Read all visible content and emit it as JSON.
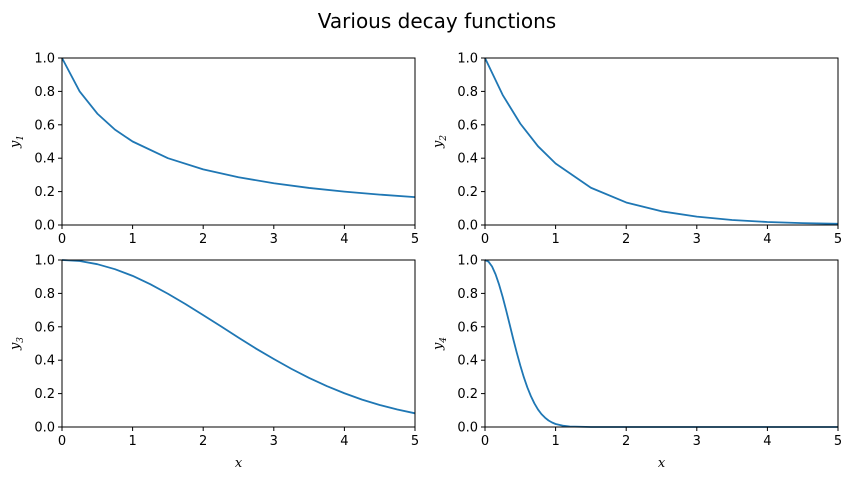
{
  "figure": {
    "title": "Various decay functions"
  },
  "colors": {
    "line": "#1f77b4"
  },
  "chart_data": [
    {
      "type": "line",
      "ylabel_base": "y",
      "ylabel_sub": "1",
      "xlabel": "",
      "xlim": [
        0,
        5
      ],
      "ylim": [
        0,
        1
      ],
      "xticks": [
        "0",
        "1",
        "2",
        "3",
        "4",
        "5"
      ],
      "yticks": [
        "0.0",
        "0.2",
        "0.4",
        "0.6",
        "0.8",
        "1.0"
      ],
      "grid": false,
      "series": [
        {
          "x": [
            0,
            0.25,
            0.5,
            0.75,
            1,
            1.5,
            2,
            2.5,
            3,
            3.5,
            4,
            4.5,
            5
          ],
          "y": [
            1,
            0.8,
            0.667,
            0.571,
            0.5,
            0.4,
            0.333,
            0.286,
            0.25,
            0.222,
            0.2,
            0.182,
            0.167
          ]
        }
      ]
    },
    {
      "type": "line",
      "ylabel_base": "y",
      "ylabel_sub": "2",
      "xlabel": "",
      "xlim": [
        0,
        5
      ],
      "ylim": [
        0,
        1
      ],
      "xticks": [
        "0",
        "1",
        "2",
        "3",
        "4",
        "5"
      ],
      "yticks": [
        "0.0",
        "0.2",
        "0.4",
        "0.6",
        "0.8",
        "1.0"
      ],
      "grid": false,
      "series": [
        {
          "x": [
            0,
            0.25,
            0.5,
            0.75,
            1,
            1.5,
            2,
            2.5,
            3,
            3.5,
            4,
            4.5,
            5
          ],
          "y": [
            1,
            0.779,
            0.607,
            0.472,
            0.368,
            0.223,
            0.135,
            0.082,
            0.05,
            0.03,
            0.018,
            0.011,
            0.007
          ]
        }
      ]
    },
    {
      "type": "line",
      "ylabel_base": "y",
      "ylabel_sub": "3",
      "xlabel": "x",
      "xlim": [
        0,
        5
      ],
      "ylim": [
        0,
        1
      ],
      "xticks": [
        "0",
        "1",
        "2",
        "3",
        "4",
        "5"
      ],
      "yticks": [
        "0.0",
        "0.2",
        "0.4",
        "0.6",
        "0.8",
        "1.0"
      ],
      "grid": false,
      "series": [
        {
          "x": [
            0,
            0.25,
            0.5,
            0.75,
            1,
            1.25,
            1.5,
            1.75,
            2,
            2.25,
            2.5,
            2.75,
            3,
            3.25,
            3.5,
            3.75,
            4,
            4.25,
            4.5,
            4.75,
            5
          ],
          "y": [
            1,
            0.994,
            0.975,
            0.945,
            0.905,
            0.855,
            0.798,
            0.736,
            0.67,
            0.603,
            0.535,
            0.469,
            0.407,
            0.348,
            0.294,
            0.245,
            0.202,
            0.164,
            0.132,
            0.105,
            0.082
          ]
        }
      ]
    },
    {
      "type": "line",
      "ylabel_base": "y",
      "ylabel_sub": "4",
      "xlabel": "x",
      "xlim": [
        0,
        5
      ],
      "ylim": [
        0,
        1
      ],
      "xticks": [
        "0",
        "1",
        "2",
        "3",
        "4",
        "5"
      ],
      "yticks": [
        "0.0",
        "0.2",
        "0.4",
        "0.6",
        "0.8",
        "1.0"
      ],
      "grid": false,
      "series": [
        {
          "x": [
            0,
            0.05,
            0.1,
            0.15,
            0.2,
            0.25,
            0.3,
            0.35,
            0.4,
            0.45,
            0.5,
            0.55,
            0.6,
            0.65,
            0.7,
            0.75,
            0.8,
            0.85,
            0.9,
            0.95,
            1,
            1.1,
            1.2,
            1.5,
            2,
            3,
            4,
            5
          ],
          "y": [
            1,
            0.99,
            0.961,
            0.914,
            0.852,
            0.779,
            0.698,
            0.613,
            0.527,
            0.445,
            0.368,
            0.298,
            0.237,
            0.185,
            0.141,
            0.105,
            0.077,
            0.056,
            0.039,
            0.027,
            0.018,
            0.008,
            0.003,
            0,
            0,
            0,
            0,
            0
          ]
        }
      ]
    }
  ]
}
